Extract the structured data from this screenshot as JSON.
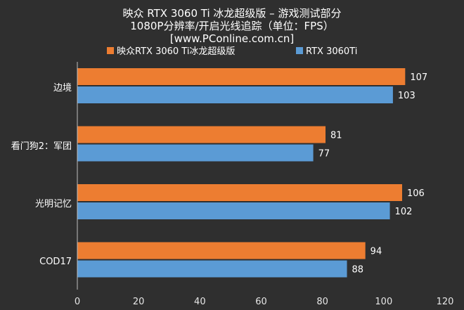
{
  "chart_data": {
    "type": "bar",
    "orientation": "horizontal",
    "title_lines": [
      "映众 RTX 3060 Ti 冰龙超级版  – 游戏测试部分",
      "1080P分辨率/开启光线追踪（单位：FPS）",
      "[www.PConline.com.cn]"
    ],
    "categories": [
      "边境",
      "看门狗2：军团",
      "光明记忆",
      "COD17"
    ],
    "series": [
      {
        "name": "映众RTX 3060 Ti冰龙超级版",
        "color": "#ed7d31",
        "values": [
          107,
          81,
          106,
          94
        ]
      },
      {
        "name": "RTX 3060Ti",
        "color": "#5b9bd5",
        "values": [
          103,
          77,
          102,
          88
        ]
      }
    ],
    "xlim": [
      0,
      120
    ],
    "xticks": [
      "0",
      "20",
      "40",
      "60",
      "80",
      "100",
      "120"
    ],
    "legend_position": "top",
    "grid": false
  }
}
